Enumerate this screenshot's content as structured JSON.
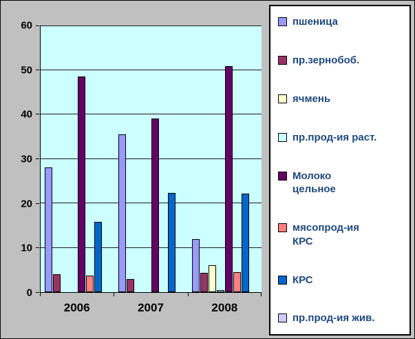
{
  "chart_data": {
    "type": "bar",
    "title": "",
    "xlabel": "",
    "ylabel": "",
    "categories": [
      "2006",
      "2007",
      "2008"
    ],
    "series": [
      {
        "name": "пшеница",
        "legend_label": "пшеница",
        "color": "#9999FF",
        "values": [
          28,
          35.5,
          12
        ]
      },
      {
        "name": "пр.зернобоб.",
        "legend_label": "пр.зернобоб.",
        "color": "#993366",
        "values": [
          4,
          3,
          4.3
        ]
      },
      {
        "name": "ячмень",
        "legend_label": "ячмень",
        "color": "#FFFFCC",
        "values": [
          0,
          0,
          6
        ]
      },
      {
        "name": "пр.прод-ия раст.",
        "legend_label": "пр.прод-ия раст.",
        "color": "#CCFFFF",
        "values": [
          0,
          0,
          0.4
        ]
      },
      {
        "name": "Молоко цельное",
        "legend_label": "Молоко\nцельное",
        "color": "#660066",
        "values": [
          48.5,
          39,
          50.8
        ]
      },
      {
        "name": "мясопрод-ия КРС",
        "legend_label": "мясопрод-ия\nКРС",
        "color": "#FF8080",
        "values": [
          3.7,
          0,
          4.5
        ]
      },
      {
        "name": "КРС",
        "legend_label": "КРС",
        "color": "#0066CC",
        "values": [
          15.8,
          22.3,
          22.2
        ]
      },
      {
        "name": "пр.прод-ия жив.",
        "legend_label": "пр.прод-ия жив.",
        "color": "#CCCCFF",
        "values": [
          0,
          0,
          0
        ]
      }
    ],
    "ylim": [
      0,
      60
    ],
    "yticks": [
      0,
      10,
      20,
      30,
      40,
      50,
      60
    ],
    "grid": true,
    "legend_position": "right"
  },
  "colors": {
    "frame_bg": "#C0C0C0",
    "plot_bg": "#CCFFFF",
    "legend_bg": "#FFFFFF",
    "legend_text": "#1F497D",
    "axis_text": "#000000"
  }
}
